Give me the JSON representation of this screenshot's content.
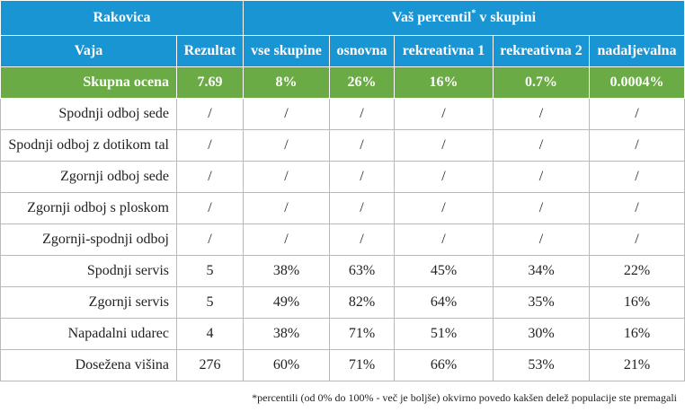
{
  "header": {
    "club": "Rakovica",
    "percentile_title": "Vaš percentil",
    "percentile_sup": "*",
    "percentile_suffix": " v skupini",
    "col_skill": "Vaja",
    "col_result": "Rezultat",
    "groups": [
      "vse skupine",
      "osnovna",
      "rekreativna 1",
      "rekreativna 2",
      "nadaljevalna"
    ]
  },
  "total": {
    "label": "Skupna ocena",
    "result": "7.69",
    "percentiles": [
      "8%",
      "26%",
      "16%",
      "0.7%",
      "0.0004%"
    ]
  },
  "rows": [
    {
      "label": "Spodnji odboj sede",
      "result": "/",
      "percentiles": [
        "/",
        "/",
        "/",
        "/",
        "/"
      ]
    },
    {
      "label": "Spodnji odboj z dotikom tal",
      "result": "/",
      "percentiles": [
        "/",
        "/",
        "/",
        "/",
        "/"
      ]
    },
    {
      "label": "Zgornji odboj sede",
      "result": "/",
      "percentiles": [
        "/",
        "/",
        "/",
        "/",
        "/"
      ]
    },
    {
      "label": "Zgornji odboj s ploskom",
      "result": "/",
      "percentiles": [
        "/",
        "/",
        "/",
        "/",
        "/"
      ]
    },
    {
      "label": "Zgornji-spodnji odboj",
      "result": "/",
      "percentiles": [
        "/",
        "/",
        "/",
        "/",
        "/"
      ]
    },
    {
      "label": "Spodnji servis",
      "result": "5",
      "percentiles": [
        "38%",
        "63%",
        "45%",
        "34%",
        "22%"
      ]
    },
    {
      "label": "Zgornji servis",
      "result": "5",
      "percentiles": [
        "49%",
        "82%",
        "64%",
        "35%",
        "16%"
      ]
    },
    {
      "label": "Napadalni udarec",
      "result": "4",
      "percentiles": [
        "38%",
        "71%",
        "51%",
        "30%",
        "16%"
      ]
    },
    {
      "label": "Dosežena višina",
      "result": "276",
      "percentiles": [
        "60%",
        "71%",
        "66%",
        "53%",
        "21%"
      ]
    }
  ],
  "footnote": "*percentili (od 0% do 100% - več je boljše) okvirno povedo kakšen delež populacije ste premagali",
  "colors": {
    "header_blue": "#1a95d4",
    "total_green": "#6aab45"
  }
}
